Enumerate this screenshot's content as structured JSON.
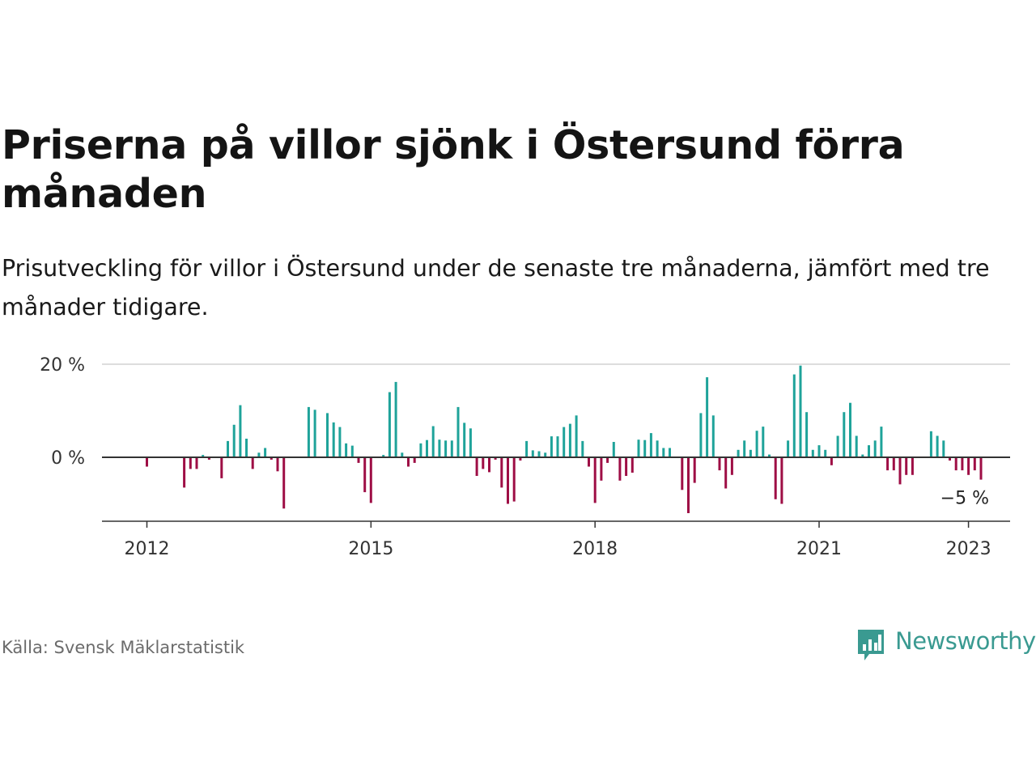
{
  "title": "Priserna på villor sjönk i Östersund förra månaden",
  "subtitle": "Prisutveckling för villor i Östersund under de senaste tre månaderna, jämfört med tre månader tidigare.",
  "source": "Källa: Svensk Mäklarstatistik",
  "brand": {
    "name": "Newsworthy",
    "color": "#3a9a91"
  },
  "colors": {
    "positive": "#1fa39a",
    "negative": "#9e0e45",
    "grid": "#dddddd",
    "axis": "#333333"
  },
  "chart_data": {
    "type": "bar",
    "ylim": [
      -14,
      20
    ],
    "y_ticks": [
      {
        "value": 0,
        "label": "0 %"
      },
      {
        "value": 20,
        "label": "20 %"
      }
    ],
    "x_ticks": [
      {
        "date": "2012-01",
        "label": "2012"
      },
      {
        "date": "2015-01",
        "label": "2015"
      },
      {
        "date": "2018-01",
        "label": "2018"
      },
      {
        "date": "2021-01",
        "label": "2021"
      },
      {
        "date": "2023-01",
        "label": "2023"
      }
    ],
    "last_value_label": "−5 %",
    "start_month": "2012-01",
    "values": [
      -2,
      0,
      0,
      0,
      0,
      0,
      -6.5,
      -2.5,
      -2.5,
      0.5,
      -0.5,
      0,
      -4.5,
      3.5,
      7,
      11.2,
      4,
      -2.5,
      1,
      2,
      -0.5,
      -3,
      -11,
      0,
      0,
      0,
      10.8,
      10.2,
      0,
      9.5,
      7.5,
      6.5,
      3,
      2.5,
      -1.2,
      -7.5,
      -9.8,
      0,
      0.5,
      14,
      16.2,
      1,
      -2,
      -1.2,
      3,
      3.7,
      6.7,
      3.8,
      3.6,
      3.6,
      10.8,
      7.4,
      6.2,
      -4,
      -2.5,
      -3.2,
      -0.5,
      -6.5,
      -10,
      -9.5,
      -0.7,
      3.5,
      1.5,
      1.3,
      1,
      4.5,
      4.5,
      6.5,
      7.2,
      9,
      3.5,
      -2,
      -9.8,
      -5,
      -1.2,
      3.3,
      -5,
      -4,
      -3.3,
      3.8,
      3.7,
      5.2,
      3.6,
      2,
      2,
      0,
      -7,
      -12,
      -5.5,
      9.5,
      17.2,
      9,
      -2.8,
      -6.7,
      -3.8,
      1.6,
      3.6,
      1.6,
      5.7,
      6.6,
      0.6,
      -9,
      -10,
      3.6,
      17.8,
      19.7,
      9.7,
      1.6,
      2.6,
      1.6,
      -1.7,
      4.6,
      9.7,
      11.7,
      4.6,
      0.6,
      2.6,
      3.6,
      6.6,
      -2.8,
      -2.8,
      -5.8,
      -3.8,
      -3.8,
      0,
      0,
      5.6,
      4.6,
      3.6,
      -0.7,
      -2.8,
      -2.8,
      -3.8,
      -2.8,
      -4.8
    ]
  }
}
